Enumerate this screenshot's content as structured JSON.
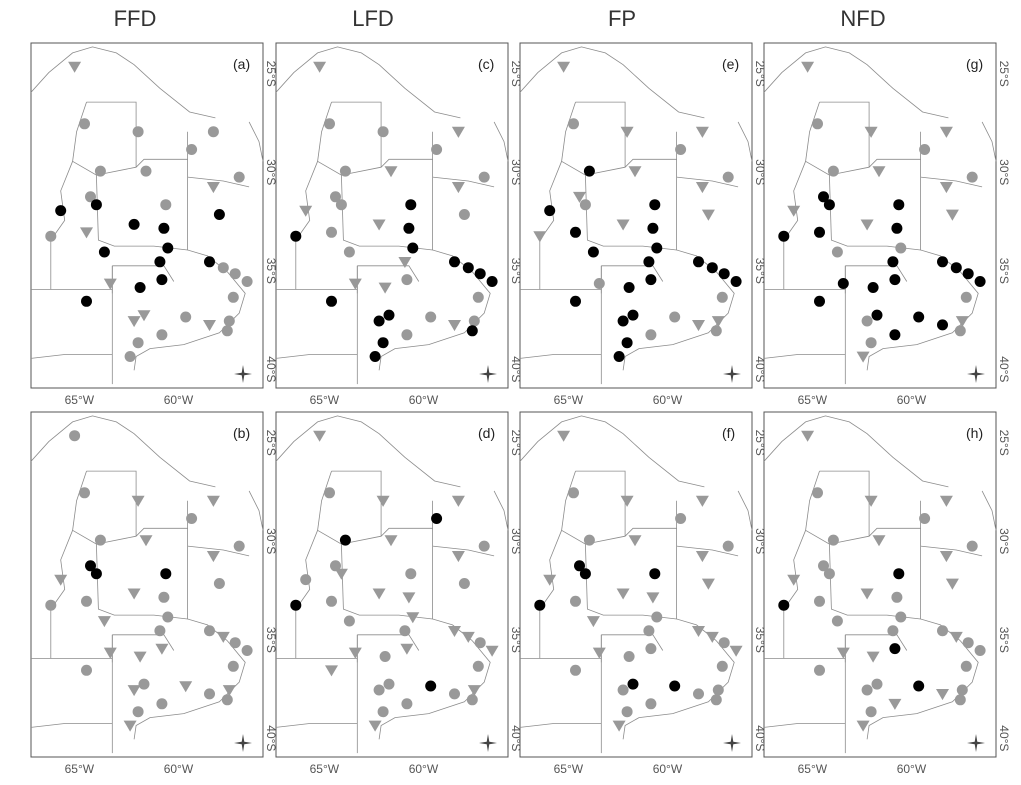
{
  "columns": [
    "FFD",
    "LFD",
    "FP",
    "NFD"
  ],
  "panel_labels": [
    [
      "(a)",
      "(b)"
    ],
    [
      "(c)",
      "(d)"
    ],
    [
      "(e)",
      "(f)"
    ],
    [
      "(g)",
      "(h)"
    ]
  ],
  "axes": {
    "lon_ticks": [
      -65,
      -60
    ],
    "lon_tick_labels": [
      "65°W",
      "60°W"
    ],
    "lat_ticks": [
      -25,
      -30,
      -35,
      -40
    ],
    "lat_tick_labels": [
      "25°S",
      "30°S",
      "35°S",
      "40°S"
    ],
    "lon_range": [
      -67.5,
      -55.8
    ],
    "lat_range": [
      -41.0,
      -23.5
    ]
  },
  "colors": {
    "significant": "#000000",
    "not_significant": "#999999",
    "boundary": "#8c8c8c"
  },
  "legend_marker_names": {
    "circle": "circle-station",
    "triangle": "triangle-station"
  },
  "stations": [
    {
      "lon": -65.3,
      "lat": -24.7
    },
    {
      "lon": -64.8,
      "lat": -27.6
    },
    {
      "lon": -62.1,
      "lat": -28.0
    },
    {
      "lon": -64.0,
      "lat": -30.0
    },
    {
      "lon": -61.7,
      "lat": -30.0
    },
    {
      "lon": -59.4,
      "lat": -28.9
    },
    {
      "lon": -58.3,
      "lat": -28.0
    },
    {
      "lon": -57.0,
      "lat": -30.3
    },
    {
      "lon": -58.3,
      "lat": -30.8
    },
    {
      "lon": -64.5,
      "lat": -31.3
    },
    {
      "lon": -64.2,
      "lat": -31.7
    },
    {
      "lon": -66.0,
      "lat": -32.0
    },
    {
      "lon": -64.7,
      "lat": -33.1
    },
    {
      "lon": -63.8,
      "lat": -34.1
    },
    {
      "lon": -62.3,
      "lat": -32.7
    },
    {
      "lon": -60.7,
      "lat": -31.7
    },
    {
      "lon": -60.8,
      "lat": -32.9
    },
    {
      "lon": -60.6,
      "lat": -33.9
    },
    {
      "lon": -58.0,
      "lat": -32.2
    },
    {
      "lon": -66.5,
      "lat": -33.3
    },
    {
      "lon": -63.5,
      "lat": -35.7
    },
    {
      "lon": -64.7,
      "lat": -36.6
    },
    {
      "lon": -62.0,
      "lat": -35.9
    },
    {
      "lon": -60.9,
      "lat": -35.5
    },
    {
      "lon": -61.0,
      "lat": -34.6
    },
    {
      "lon": -58.5,
      "lat": -34.6
    },
    {
      "lon": -57.8,
      "lat": -34.9
    },
    {
      "lon": -57.2,
      "lat": -35.2
    },
    {
      "lon": -56.6,
      "lat": -35.6
    },
    {
      "lon": -57.3,
      "lat": -36.4
    },
    {
      "lon": -57.5,
      "lat": -37.6
    },
    {
      "lon": -58.5,
      "lat": -37.8
    },
    {
      "lon": -57.6,
      "lat": -38.1
    },
    {
      "lon": -59.7,
      "lat": -37.4
    },
    {
      "lon": -60.9,
      "lat": -38.3
    },
    {
      "lon": -62.3,
      "lat": -37.6
    },
    {
      "lon": -61.8,
      "lat": -37.3
    },
    {
      "lon": -62.1,
      "lat": -38.7
    },
    {
      "lon": -62.5,
      "lat": -39.4
    }
  ],
  "panels": [
    {
      "label": "(a)",
      "markers": "TCCCCCCCTCBBTBBCBBBCTBBBBBCCCCCTCCCTTCC"
    },
    {
      "label": "(b)",
      "markers": "CCTCTCTCTBBTCTTBCCCCTCTTCCTCCCTCCTCTCCT"
    },
    {
      "label": "(c)",
      "markers": "TCCCTCTCTCCTCCTBBBCBTBTCTBBBBCCTBCCBBBB"
    },
    {
      "label": "(d)",
      "markers": "TCTBTBTCTCTCCCTCTTCBTTCTCTTCTCTCCBCCCCT"
    },
    {
      "label": "(e)",
      "markers": "TCTBTCTCTTCBBBTBBBTTCBBBBBBBBCTTCCCBBBB"
    },
    {
      "label": "(f)",
      "markers": "TCTCTCTCTBBTCTTBTCTBTCCCCTTCTCCCCBCCBCT"
    },
    {
      "label": "(g)",
      "markers": "TCTCTCTCTBBTBCTBBCTBBBBBBBBBBCTBCBBCBCT"
    },
    {
      "label": "(h)",
      "markers": "TCTCTCTCTCCTCCTBCCTBTCTBCCTCCCCTCBTCCCT"
    }
  ]
}
